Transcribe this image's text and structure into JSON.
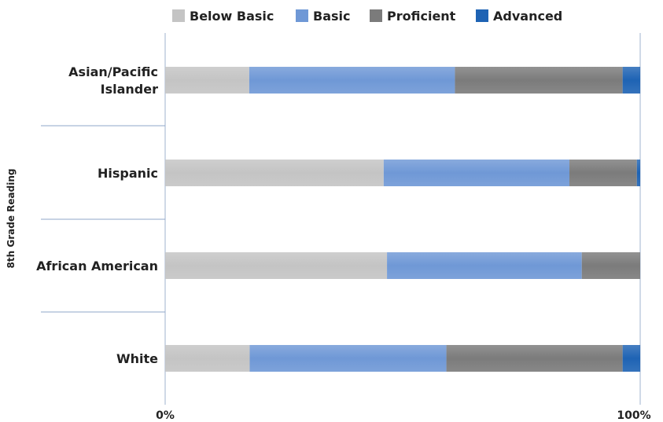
{
  "chart_data": {
    "type": "bar",
    "orientation": "horizontal",
    "stacked": "percent",
    "yaxis_label": "8th Grade Reading",
    "categories": [
      "Asian/Pacific Islander",
      "Hispanic",
      "African American",
      "White"
    ],
    "category_lines": [
      [
        "Asian/Pacific",
        "Islander"
      ],
      [
        "Hispanic"
      ],
      [
        "African American"
      ],
      [
        "White"
      ]
    ],
    "series": [
      {
        "name": "Below Basic",
        "color": "#c4c4c4",
        "values": [
          17.7,
          46,
          46.7,
          17.8
        ]
      },
      {
        "name": "Basic",
        "color": "#6f98d6",
        "values": [
          43.3,
          39.1,
          41,
          41.4
        ]
      },
      {
        "name": "Proficient",
        "color": "#7b7b7b",
        "values": [
          35.3,
          14.2,
          12.3,
          37.1
        ]
      },
      {
        "name": "Advanced",
        "color": "#1e63b4",
        "values": [
          3.7,
          0.7,
          0,
          3.7
        ]
      }
    ],
    "xlim": [
      0,
      100
    ],
    "x_tick_labels": [
      "0%",
      "100%"
    ],
    "legend_position": "top",
    "grid": false
  }
}
